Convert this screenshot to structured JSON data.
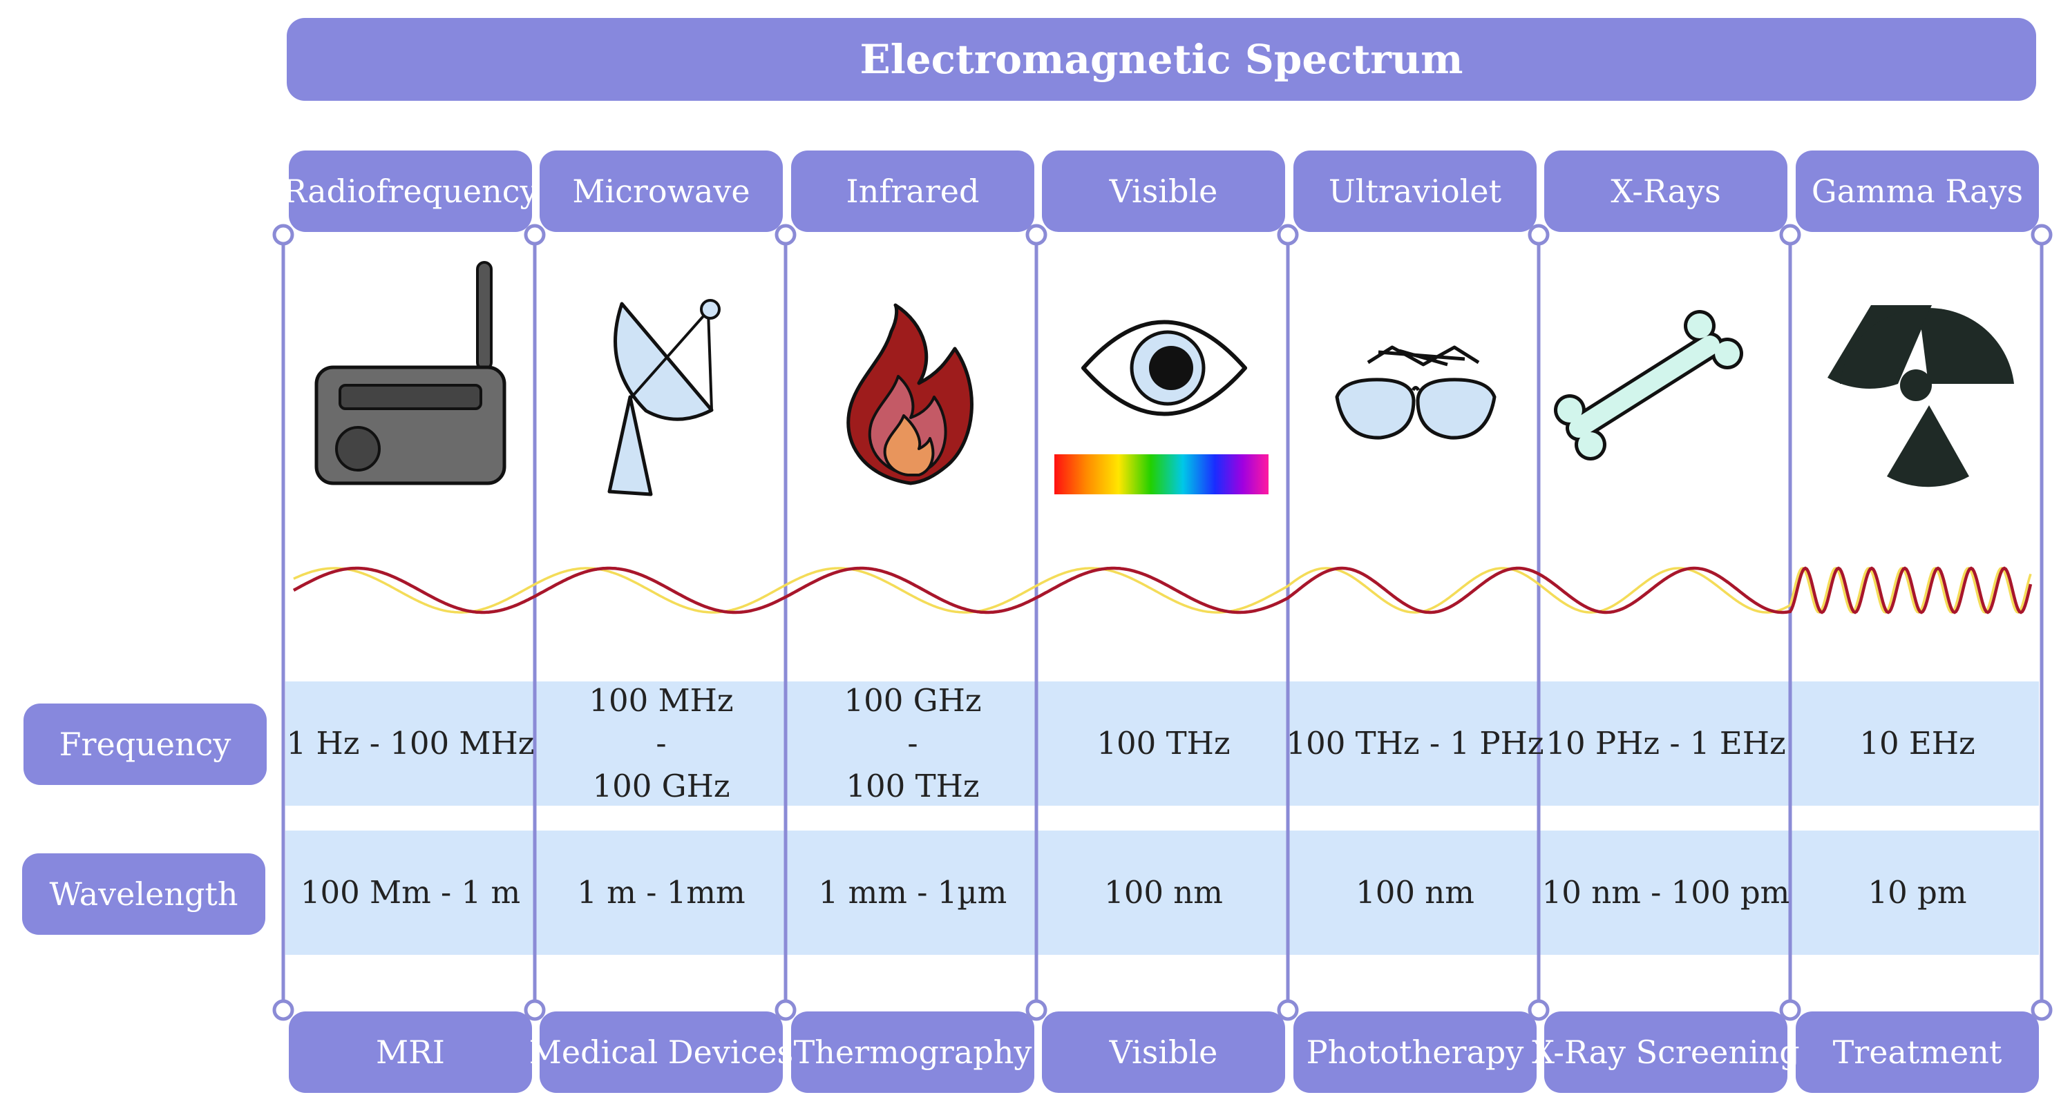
{
  "title": "Electromagnetic Spectrum",
  "row_labels": {
    "frequency": "Frequency",
    "wavelength": "Wavelength"
  },
  "colors": {
    "pill": "#8788dd",
    "grid_line": "#8b8bd6",
    "row_band": "#d3e6fb",
    "wave_red": "#a8162b",
    "wave_yellow": "#f4dc58",
    "text": "#222222"
  },
  "bands": [
    {
      "name": "Radiofrequency",
      "icon": "radio-icon",
      "frequency": [
        "1 Hz - 100 MHz"
      ],
      "wavelength": "100 Mm - 1 m",
      "application": "MRI"
    },
    {
      "name": "Microwave",
      "icon": "satellite-dish-icon",
      "frequency": [
        "100 MHz",
        "-",
        "100 GHz"
      ],
      "wavelength": "1 m - 1mm",
      "application": "Medical Devices"
    },
    {
      "name": "Infrared",
      "icon": "flame-icon",
      "frequency": [
        "100 GHz",
        "-",
        "100 THz"
      ],
      "wavelength": "1 mm - 1µm",
      "application": "Thermography"
    },
    {
      "name": "Visible",
      "icon": "eye-icon",
      "frequency": [
        "100 THz"
      ],
      "wavelength": "100 nm",
      "application": "Visible"
    },
    {
      "name": "Ultraviolet",
      "icon": "sunglasses-icon",
      "frequency": [
        "100 THz - 1 PHz"
      ],
      "wavelength": "100 nm",
      "application": "Phototherapy"
    },
    {
      "name": "X-Rays",
      "icon": "bone-icon",
      "frequency": [
        "10 PHz - 1 EHz"
      ],
      "wavelength": "10 nm - 100 pm",
      "application": "X-Ray Screening"
    },
    {
      "name": "Gamma Rays",
      "icon": "radiation-icon",
      "frequency": [
        "10 EHz"
      ],
      "wavelength": "10 pm",
      "application": "Treatment"
    }
  ]
}
